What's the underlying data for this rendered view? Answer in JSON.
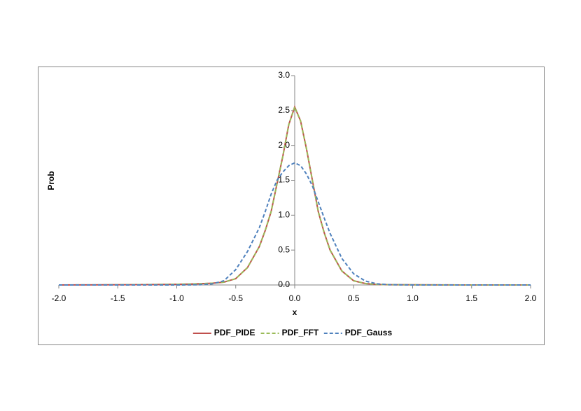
{
  "chart_data": {
    "type": "line",
    "x_label": "x",
    "y_label": "Prob",
    "x": [
      -2.0,
      -1.8,
      -1.6,
      -1.4,
      -1.2,
      -1.0,
      -0.9,
      -0.8,
      -0.7,
      -0.6,
      -0.5,
      -0.4,
      -0.3,
      -0.25,
      -0.2,
      -0.15,
      -0.1,
      -0.05,
      0,
      0.05,
      0.1,
      0.15,
      0.2,
      0.25,
      0.3,
      0.4,
      0.5,
      0.6,
      0.7,
      0.8,
      1.0,
      1.2,
      1.4,
      1.6,
      1.8,
      2.0
    ],
    "series": [
      {
        "name": "PDF_PIDE",
        "color": "#c0504d",
        "dash": "solid",
        "values": [
          0,
          0.001,
          0.002,
          0.004,
          0.006,
          0.01,
          0.013,
          0.018,
          0.025,
          0.04,
          0.09,
          0.25,
          0.55,
          0.78,
          1.05,
          1.45,
          1.85,
          2.3,
          2.55,
          2.35,
          1.95,
          1.5,
          1.05,
          0.75,
          0.5,
          0.2,
          0.06,
          0.02,
          0.008,
          0.004,
          0.002,
          0.001,
          0,
          0,
          0,
          0
        ]
      },
      {
        "name": "PDF_FFT",
        "color": "#9bbb59",
        "dash": "dashed",
        "values": [
          0,
          0.001,
          0.002,
          0.004,
          0.006,
          0.01,
          0.013,
          0.018,
          0.025,
          0.04,
          0.09,
          0.25,
          0.55,
          0.78,
          1.05,
          1.45,
          1.85,
          2.3,
          2.55,
          2.35,
          1.95,
          1.5,
          1.05,
          0.75,
          0.5,
          0.2,
          0.06,
          0.02,
          0.008,
          0.004,
          0.002,
          0.001,
          0,
          0,
          0,
          0
        ]
      },
      {
        "name": "PDF_Gauss",
        "color": "#4f81bd",
        "dash": "dashed",
        "values": [
          0,
          0,
          0,
          0,
          0,
          0,
          0.001,
          0.004,
          0.016,
          0.06,
          0.22,
          0.48,
          0.82,
          1.05,
          1.3,
          1.5,
          1.62,
          1.71,
          1.75,
          1.71,
          1.59,
          1.42,
          1.19,
          0.96,
          0.74,
          0.38,
          0.16,
          0.055,
          0.016,
          0.004,
          0,
          0,
          0,
          0,
          0,
          0
        ]
      }
    ],
    "xlim": [
      -2.0,
      2.0
    ],
    "xticks": [
      {
        "value": -2,
        "label": "-2.0"
      },
      {
        "value": -1.5,
        "label": "-1.5"
      },
      {
        "value": -1,
        "label": "-1.0"
      },
      {
        "value": -0.5,
        "label": "-0.5"
      },
      {
        "value": 0,
        "label": "0.0"
      },
      {
        "value": 0.5,
        "label": "0.5"
      },
      {
        "value": 1,
        "label": "1.0"
      },
      {
        "value": 1.5,
        "label": "1.5"
      },
      {
        "value": 2,
        "label": "2.0"
      }
    ],
    "ylim": [
      0,
      3.0
    ],
    "yticks": [
      {
        "value": 0,
        "label": "0.0"
      },
      {
        "value": 0.5,
        "label": "0.5"
      },
      {
        "value": 1,
        "label": "1.0"
      },
      {
        "value": 1.5,
        "label": "1.5"
      },
      {
        "value": 2,
        "label": "2.0"
      },
      {
        "value": 2.5,
        "label": "2.5"
      },
      {
        "value": 3,
        "label": "3.0"
      }
    ],
    "grid": false,
    "legend": "bottom"
  }
}
